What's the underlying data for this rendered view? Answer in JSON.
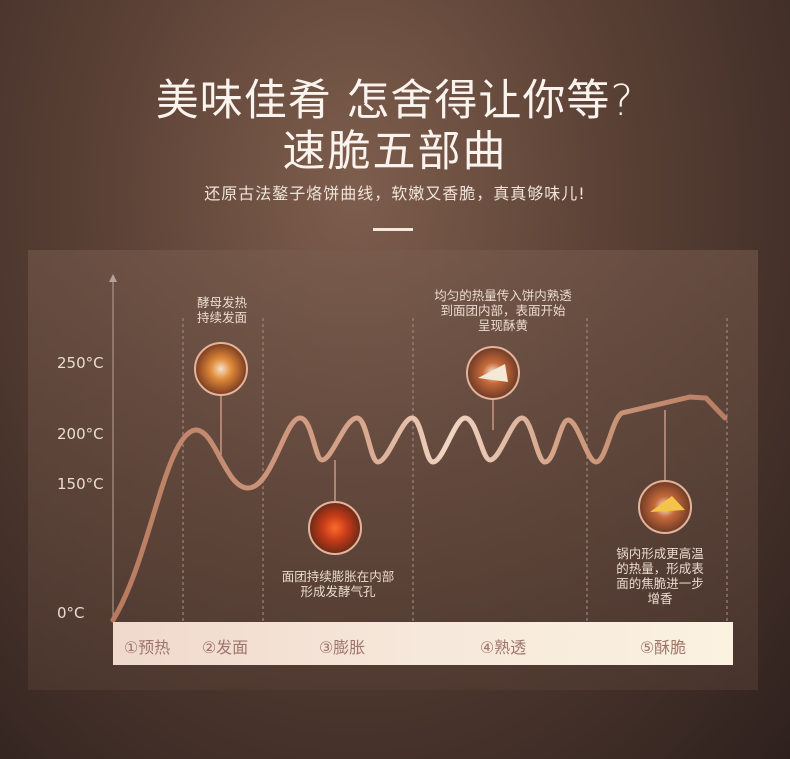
{
  "header": {
    "title_line1": "美味佳肴 怎舍得让你等?",
    "title_line2": "速脆五部曲",
    "subtitle": "还原古法鏊子烙饼曲线，软嫩又香脆，真真够味儿!"
  },
  "axis": {
    "ticks": [
      "250°C",
      "200°C",
      "150°C",
      "0°C"
    ]
  },
  "notes": {
    "rise": "酵母发热\n持续发面",
    "expand": "面团持续膨胀在内部\n形成发酵气孔",
    "cook": "均匀的热量传入饼内熟透\n到面团内部，表面开始\n呈现酥黄",
    "crisp": "锅内形成更高温\n的热量，形成表\n面的焦脆进一步\n增香"
  },
  "stages": [
    "①预热",
    "②发面",
    "③膨胀",
    "④熟透",
    "⑤酥脆"
  ],
  "colors": {
    "curve": "#c08a70",
    "curve_light": "#f0d2bf",
    "background": "#5c4236"
  }
}
